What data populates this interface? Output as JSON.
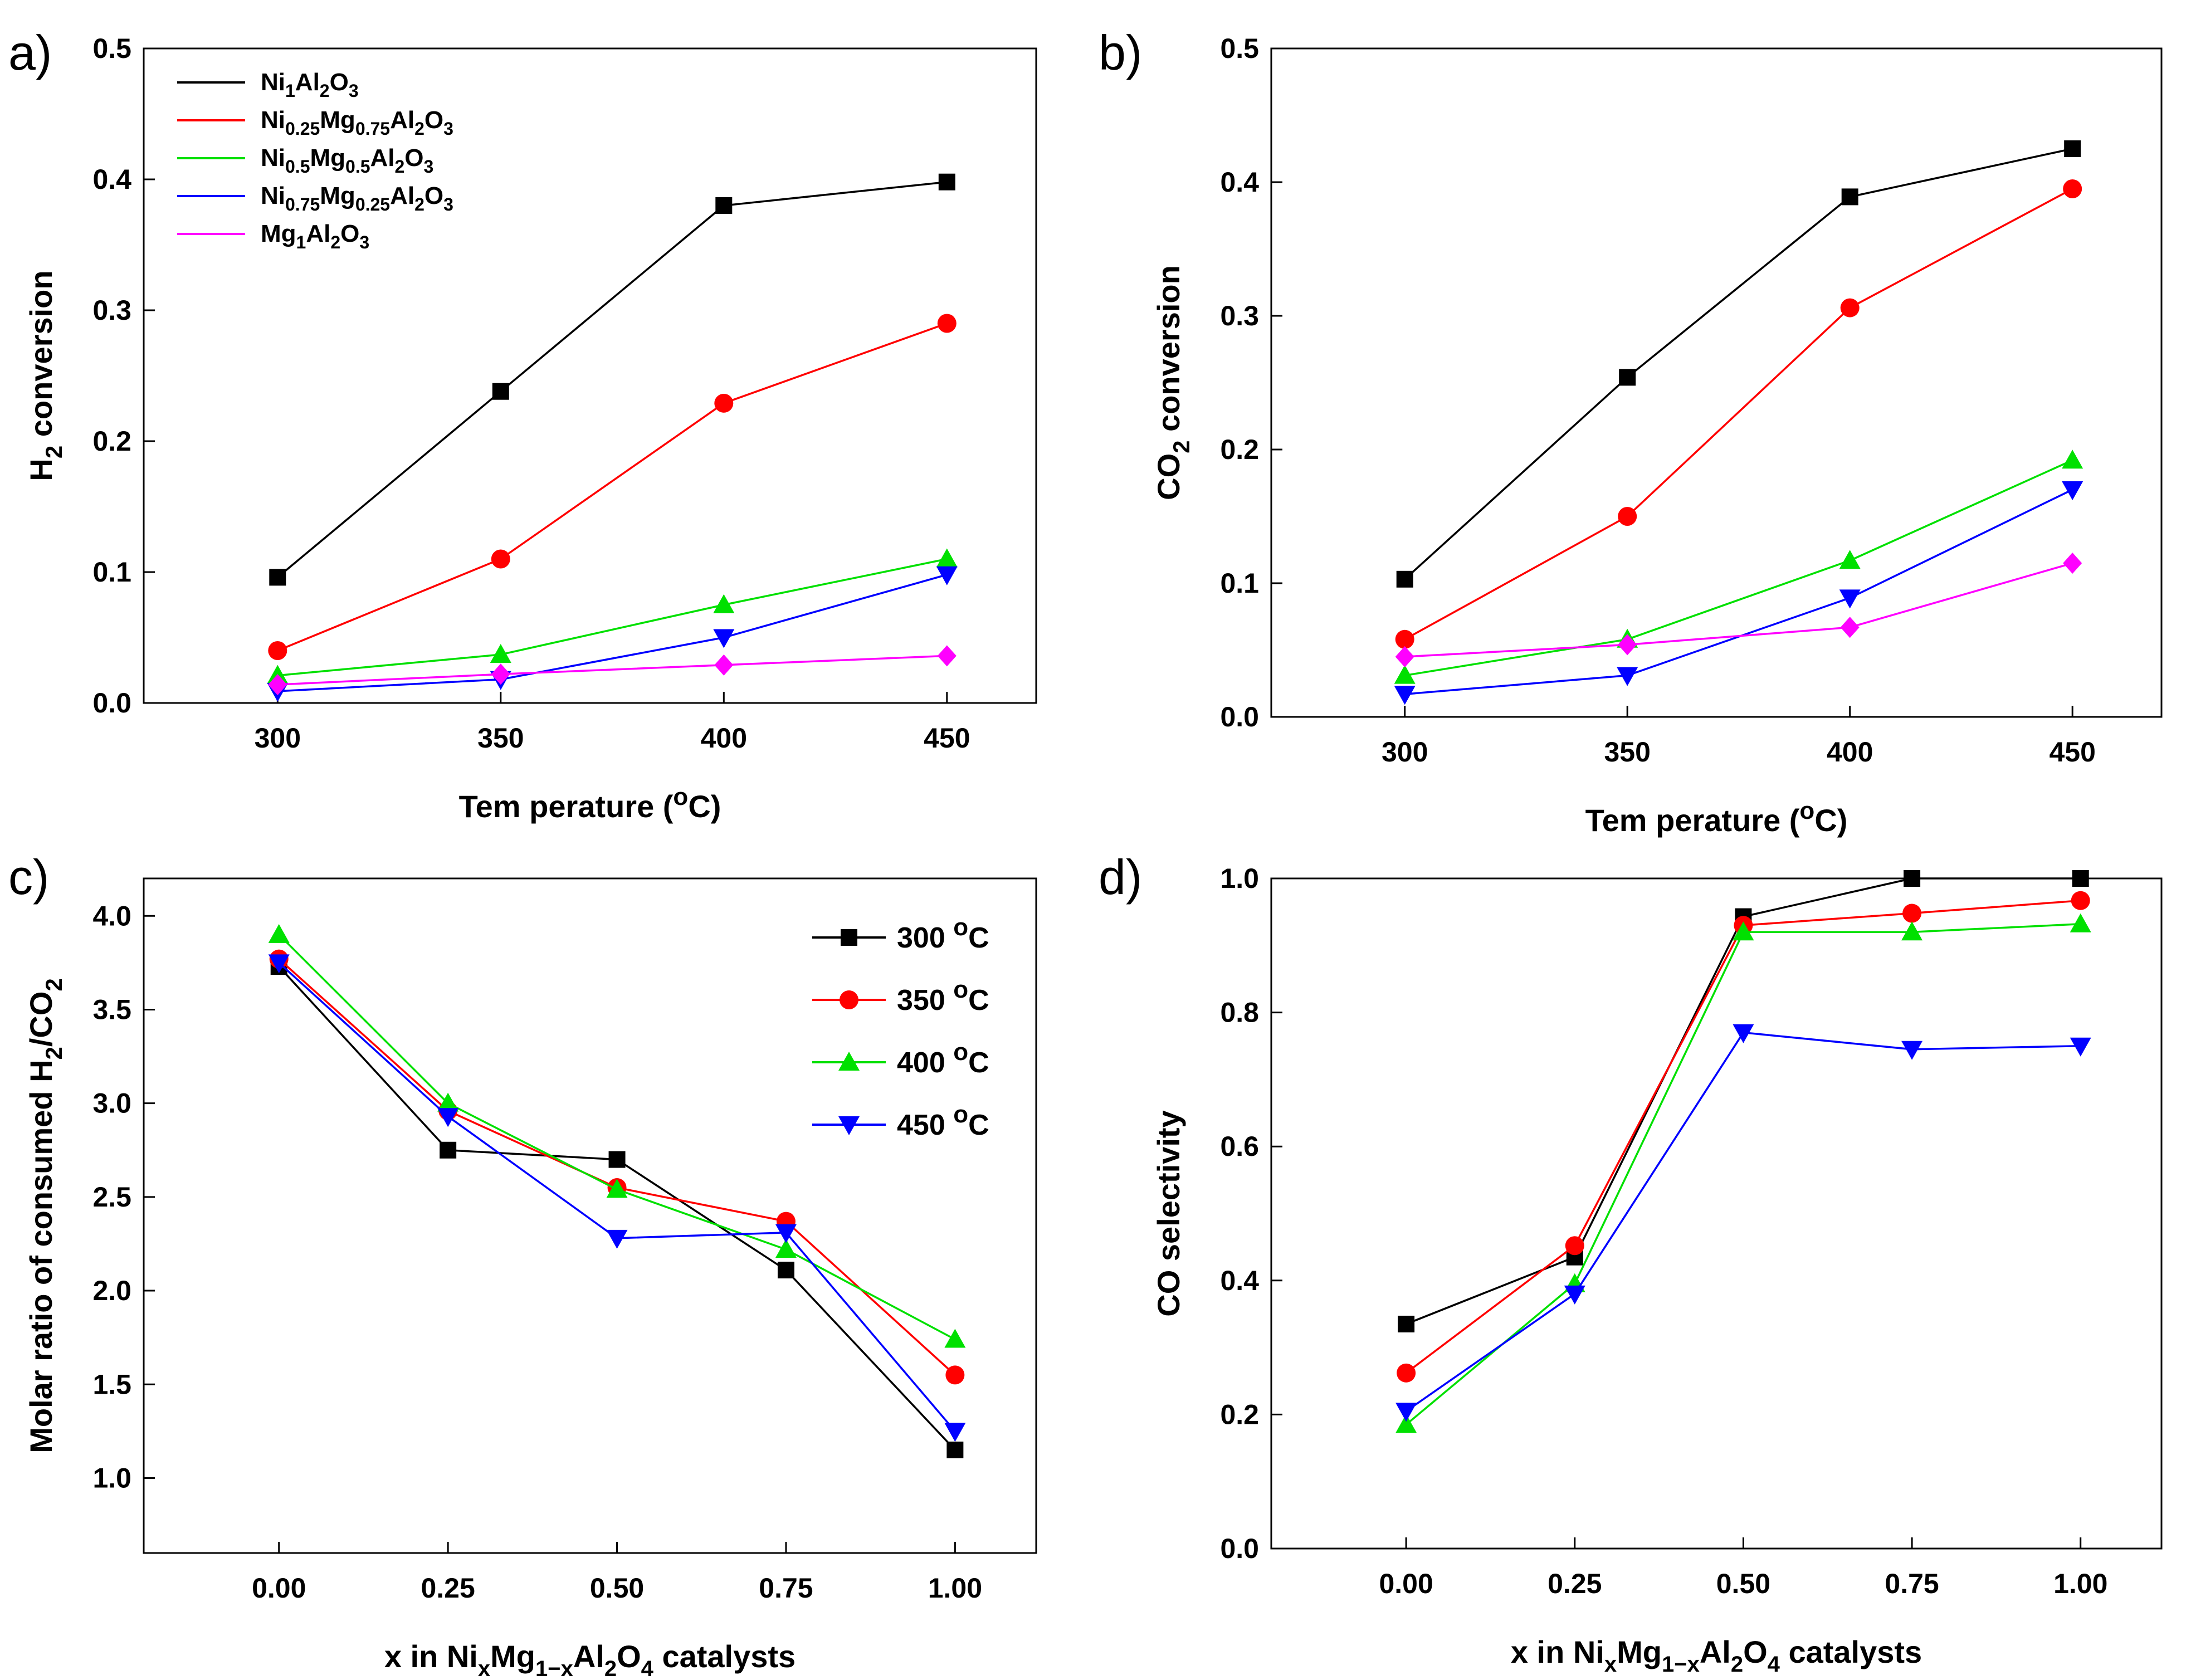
{
  "chart_data": [
    {
      "panel": "a)",
      "type": "line",
      "xlabel": "Tem perature (",
      "xlabel_unit_sup": "o",
      "xlabel_unit_end": "C)",
      "ylabel": "H",
      "ylabel_sub": "2",
      "ylabel_end": " conversion",
      "xlim": [
        270,
        470
      ],
      "ylim": [
        0,
        0.5
      ],
      "xticks": [
        300,
        350,
        400,
        450
      ],
      "xtick_labels": [
        "300",
        "350",
        "400",
        "450"
      ],
      "yticks": [
        0,
        0.1,
        0.2,
        0.3,
        0.4,
        0.5
      ],
      "ytick_labels": [
        "0.0",
        "0.1",
        "0.2",
        "0.3",
        "0.4",
        "0.5"
      ],
      "legend": "top-left",
      "series": [
        {
          "name": "Ni1Al2O3",
          "color": "#000000",
          "marker": "square",
          "x": [
            300,
            350,
            400,
            450
          ],
          "y": [
            0.096,
            0.238,
            0.38,
            0.398
          ]
        },
        {
          "name": "Ni0.25Mg0.75Al2O3",
          "color": "#ff0000",
          "marker": "circle",
          "x": [
            300,
            350,
            400,
            450
          ],
          "y": [
            0.04,
            0.11,
            0.229,
            0.29
          ]
        },
        {
          "name": "Ni0.5Mg0.5Al2O3",
          "color": "#00e000",
          "marker": "triangle-up",
          "x": [
            300,
            350,
            400,
            450
          ],
          "y": [
            0.021,
            0.037,
            0.075,
            0.11
          ]
        },
        {
          "name": "Ni0.75Mg0.25Al2O3",
          "color": "#0000ff",
          "marker": "triangle-down",
          "x": [
            300,
            350,
            400,
            450
          ],
          "y": [
            0.009,
            0.018,
            0.05,
            0.098
          ]
        },
        {
          "name": "Mg1Al2O3",
          "color": "#ff00ff",
          "marker": "diamond",
          "x": [
            300,
            350,
            400,
            450
          ],
          "y": [
            0.014,
            0.022,
            0.029,
            0.036
          ]
        }
      ]
    },
    {
      "panel": "b)",
      "type": "line",
      "xlabel": "Tem perature (",
      "xlabel_unit_sup": "o",
      "xlabel_unit_end": "C)",
      "ylabel": "CO",
      "ylabel_sub": "2",
      "ylabel_end": " conversion",
      "xlim": [
        270,
        470
      ],
      "ylim": [
        0,
        0.5
      ],
      "xticks": [
        300,
        350,
        400,
        450
      ],
      "xtick_labels": [
        "300",
        "350",
        "400",
        "450"
      ],
      "yticks": [
        0,
        0.1,
        0.2,
        0.3,
        0.4,
        0.5
      ],
      "ytick_labels": [
        "0.0",
        "0.1",
        "0.2",
        "0.3",
        "0.4",
        "0.5"
      ],
      "series": [
        {
          "name": "Ni1Al2O3",
          "color": "#000000",
          "marker": "square",
          "x": [
            300,
            350,
            400,
            450
          ],
          "y": [
            0.103,
            0.254,
            0.389,
            0.425
          ]
        },
        {
          "name": "Ni0.25Mg0.75Al2O3",
          "color": "#ff0000",
          "marker": "circle",
          "x": [
            300,
            350,
            400,
            450
          ],
          "y": [
            0.058,
            0.15,
            0.306,
            0.395
          ]
        },
        {
          "name": "Ni0.5Mg0.5Al2O3",
          "color": "#00e000",
          "marker": "triangle-up",
          "x": [
            300,
            350,
            400,
            450
          ],
          "y": [
            0.031,
            0.058,
            0.117,
            0.192
          ]
        },
        {
          "name": "Ni0.75Mg0.25Al2O3",
          "color": "#0000ff",
          "marker": "triangle-down",
          "x": [
            300,
            350,
            400,
            450
          ],
          "y": [
            0.017,
            0.031,
            0.089,
            0.17
          ]
        },
        {
          "name": "Mg1Al2O3",
          "color": "#ff00ff",
          "marker": "diamond",
          "x": [
            300,
            350,
            400,
            450
          ],
          "y": [
            0.045,
            0.054,
            0.067,
            0.115
          ]
        }
      ]
    },
    {
      "panel": "c)",
      "type": "line",
      "xlabel": "x in Ni",
      "xlabel_parts": [
        "x in Ni",
        "x",
        "Mg",
        "1−x",
        "Al",
        "2",
        "O",
        "4",
        " catalysts"
      ],
      "ylabel": "Molar ratio of consumed H",
      "ylabel_sub": "2",
      "ylabel_mid": "/CO",
      "ylabel_sub2": "2",
      "xlim": [
        -0.2,
        1.12
      ],
      "ylim": [
        0.6,
        4.2
      ],
      "xticks": [
        0,
        0.25,
        0.5,
        0.75,
        1.0
      ],
      "xtick_labels": [
        "0.00",
        "0.25",
        "0.50",
        "0.75",
        "1.00"
      ],
      "yticks": [
        1.0,
        1.5,
        2.0,
        2.5,
        3.0,
        3.5,
        4.0
      ],
      "ytick_labels": [
        "1.0",
        "1.5",
        "2.0",
        "2.5",
        "3.0",
        "3.5",
        "4.0"
      ],
      "legend": "top-right",
      "series": [
        {
          "name": "300 °C",
          "label_num": "300 ",
          "label_sup": "o",
          "label_end": "C",
          "color": "#000000",
          "marker": "square",
          "x": [
            0,
            0.25,
            0.5,
            0.75,
            1.0
          ],
          "y": [
            3.73,
            2.75,
            2.7,
            2.11,
            1.15
          ]
        },
        {
          "name": "350 °C",
          "label_num": "350 ",
          "label_sup": "o",
          "label_end": "C",
          "color": "#ff0000",
          "marker": "circle",
          "x": [
            0,
            0.25,
            0.5,
            0.75,
            1.0
          ],
          "y": [
            3.77,
            2.96,
            2.55,
            2.37,
            1.55
          ]
        },
        {
          "name": "400 °C",
          "label_num": "400 ",
          "label_sup": "o",
          "label_end": "C",
          "color": "#00e000",
          "marker": "triangle-up",
          "x": [
            0,
            0.25,
            0.5,
            0.75,
            1.0
          ],
          "y": [
            3.9,
            3.0,
            2.54,
            2.22,
            1.74
          ]
        },
        {
          "name": "450 °C",
          "label_num": "450 ",
          "label_sup": "o",
          "label_end": "C",
          "color": "#0000ff",
          "marker": "triangle-down",
          "x": [
            0,
            0.25,
            0.5,
            0.75,
            1.0
          ],
          "y": [
            3.75,
            2.93,
            2.28,
            2.31,
            1.25
          ]
        }
      ]
    },
    {
      "panel": "d)",
      "type": "line",
      "xlabel_parts": [
        "x in Ni",
        "x",
        "Mg",
        "1−x",
        "Al",
        "2",
        "O",
        "4",
        " catalysts"
      ],
      "ylabel": "CO selectivity",
      "xlim": [
        -0.2,
        1.12
      ],
      "ylim": [
        0,
        1.0
      ],
      "xticks": [
        0,
        0.25,
        0.5,
        0.75,
        1.0
      ],
      "xtick_labels": [
        "0.00",
        "0.25",
        "0.50",
        "0.75",
        "1.00"
      ],
      "yticks": [
        0,
        0.2,
        0.4,
        0.6,
        0.8,
        1.0
      ],
      "ytick_labels": [
        "0.0",
        "0.2",
        "0.4",
        "0.6",
        "0.8",
        "1.0"
      ],
      "series": [
        {
          "name": "300 °C",
          "color": "#000000",
          "marker": "square",
          "x": [
            0,
            0.25,
            0.5,
            0.75,
            1.0
          ],
          "y": [
            0.335,
            0.435,
            0.943,
            1.0,
            1.0
          ]
        },
        {
          "name": "350 °C",
          "color": "#ff0000",
          "marker": "circle",
          "x": [
            0,
            0.25,
            0.5,
            0.75,
            1.0
          ],
          "y": [
            0.262,
            0.452,
            0.93,
            0.948,
            0.967
          ]
        },
        {
          "name": "400 °C",
          "color": "#00e000",
          "marker": "triangle-up",
          "x": [
            0,
            0.25,
            0.5,
            0.75,
            1.0
          ],
          "y": [
            0.185,
            0.395,
            0.92,
            0.92,
            0.932
          ]
        },
        {
          "name": "450 °C",
          "color": "#0000ff",
          "marker": "triangle-down",
          "x": [
            0,
            0.25,
            0.5,
            0.75,
            1.0
          ],
          "y": [
            0.205,
            0.38,
            0.77,
            0.745,
            0.75
          ]
        }
      ]
    }
  ],
  "legend_a": [
    {
      "parts": [
        [
          "Ni",
          ""
        ],
        [
          "1",
          "sub"
        ],
        [
          "Al",
          ""
        ],
        [
          "2",
          "sub"
        ],
        [
          "O",
          ""
        ],
        [
          "3",
          "sub"
        ]
      ]
    },
    {
      "parts": [
        [
          "Ni",
          ""
        ],
        [
          "0.25",
          "sub"
        ],
        [
          "Mg",
          ""
        ],
        [
          "0.75",
          "sub"
        ],
        [
          "Al",
          ""
        ],
        [
          "2",
          "sub"
        ],
        [
          "O",
          ""
        ],
        [
          "3",
          "sub"
        ]
      ]
    },
    {
      "parts": [
        [
          "Ni",
          ""
        ],
        [
          "0.5",
          "sub"
        ],
        [
          "Mg",
          ""
        ],
        [
          "0.5",
          "sub"
        ],
        [
          "Al",
          ""
        ],
        [
          "2",
          "sub"
        ],
        [
          "O",
          ""
        ],
        [
          "3",
          "sub"
        ]
      ]
    },
    {
      "parts": [
        [
          "Ni",
          ""
        ],
        [
          "0.75",
          "sub"
        ],
        [
          "Mg",
          ""
        ],
        [
          "0.25",
          "sub"
        ],
        [
          "Al",
          ""
        ],
        [
          "2",
          "sub"
        ],
        [
          "O",
          ""
        ],
        [
          "3",
          "sub"
        ]
      ]
    },
    {
      "parts": [
        [
          "Mg",
          ""
        ],
        [
          "1",
          "sub"
        ],
        [
          "Al",
          ""
        ],
        [
          "2",
          "sub"
        ],
        [
          "O",
          ""
        ],
        [
          "3",
          "sub"
        ]
      ]
    }
  ]
}
